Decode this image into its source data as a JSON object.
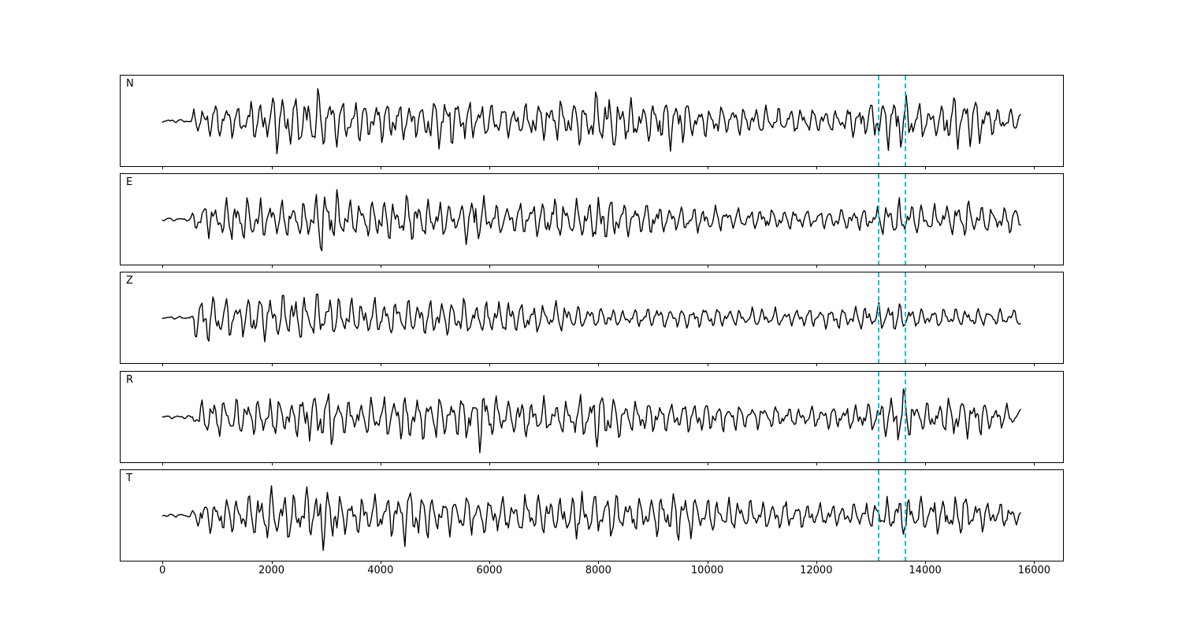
{
  "figure": {
    "background": "#ffffff"
  },
  "chart_data": {
    "type": "line",
    "variant": "seismogram-multipanel",
    "title": "",
    "xlabel": "",
    "ylabel": "",
    "xlim": [
      -770,
      16530
    ],
    "x_ticks": [
      0,
      2000,
      4000,
      6000,
      8000,
      10000,
      12000,
      14000,
      16000
    ],
    "x_tick_labels": [
      "0",
      "2000",
      "4000",
      "6000",
      "8000",
      "10000",
      "12000",
      "14000",
      "16000"
    ],
    "grid": false,
    "legend": "none",
    "trace_color": "#000000",
    "trace_linewidth": 1.4,
    "data_x_start": 0,
    "data_x_end": 15750,
    "pick_lines": {
      "color": "#17becf",
      "style": "dashed",
      "x_values": [
        13150,
        13640
      ]
    },
    "panels": [
      {
        "label": "N",
        "seed": 11,
        "envelope": [
          [
            0,
            0.04
          ],
          [
            450,
            0.05
          ],
          [
            600,
            0.35
          ],
          [
            900,
            0.55
          ],
          [
            1500,
            0.5
          ],
          [
            2000,
            0.75
          ],
          [
            2150,
            1.0
          ],
          [
            2400,
            0.7
          ],
          [
            2700,
            0.8
          ],
          [
            3000,
            0.9
          ],
          [
            3300,
            0.65
          ],
          [
            3800,
            0.6
          ],
          [
            4300,
            0.55
          ],
          [
            4700,
            0.5
          ],
          [
            5100,
            0.75
          ],
          [
            5500,
            0.6
          ],
          [
            6000,
            0.5
          ],
          [
            6500,
            0.45
          ],
          [
            7000,
            0.6
          ],
          [
            7400,
            0.55
          ],
          [
            7800,
            0.75
          ],
          [
            8300,
            0.9
          ],
          [
            8800,
            0.5
          ],
          [
            9400,
            0.8
          ],
          [
            9800,
            0.45
          ],
          [
            10300,
            0.4
          ],
          [
            11000,
            0.42
          ],
          [
            11700,
            0.35
          ],
          [
            12300,
            0.3
          ],
          [
            12800,
            0.45
          ],
          [
            13300,
            0.75
          ],
          [
            13500,
            1.0
          ],
          [
            13800,
            0.55
          ],
          [
            14200,
            0.45
          ],
          [
            14600,
            0.85
          ],
          [
            15000,
            0.7
          ],
          [
            15300,
            0.35
          ],
          [
            15750,
            0.3
          ]
        ]
      },
      {
        "label": "E",
        "seed": 22,
        "envelope": [
          [
            0,
            0.04
          ],
          [
            500,
            0.05
          ],
          [
            650,
            0.45
          ],
          [
            900,
            0.55
          ],
          [
            1300,
            0.6
          ],
          [
            1700,
            0.65
          ],
          [
            2100,
            0.55
          ],
          [
            2500,
            0.5
          ],
          [
            2900,
            1.0
          ],
          [
            3100,
            0.9
          ],
          [
            3400,
            0.5
          ],
          [
            3800,
            0.55
          ],
          [
            4200,
            0.6
          ],
          [
            4600,
            0.65
          ],
          [
            5000,
            0.55
          ],
          [
            5400,
            0.5
          ],
          [
            5700,
            0.8
          ],
          [
            6100,
            0.45
          ],
          [
            6600,
            0.5
          ],
          [
            7000,
            0.6
          ],
          [
            7400,
            0.55
          ],
          [
            7800,
            0.5
          ],
          [
            8100,
            0.75
          ],
          [
            8500,
            0.5
          ],
          [
            9000,
            0.4
          ],
          [
            9500,
            0.35
          ],
          [
            10000,
            0.38
          ],
          [
            10500,
            0.3
          ],
          [
            11000,
            0.32
          ],
          [
            11500,
            0.28
          ],
          [
            12000,
            0.25
          ],
          [
            12500,
            0.3
          ],
          [
            13000,
            0.35
          ],
          [
            13400,
            0.6
          ],
          [
            13700,
            0.5
          ],
          [
            14000,
            0.4
          ],
          [
            14500,
            0.45
          ],
          [
            14800,
            0.55
          ],
          [
            15200,
            0.4
          ],
          [
            15750,
            0.35
          ]
        ]
      },
      {
        "label": "Z",
        "seed": 33,
        "envelope": [
          [
            0,
            0.03
          ],
          [
            550,
            0.05
          ],
          [
            620,
            0.8
          ],
          [
            700,
            1.0
          ],
          [
            800,
            0.85
          ],
          [
            1000,
            0.6
          ],
          [
            1300,
            0.55
          ],
          [
            1600,
            0.6
          ],
          [
            1900,
            0.7
          ],
          [
            2100,
            0.6
          ],
          [
            2400,
            0.75
          ],
          [
            2700,
            0.6
          ],
          [
            3000,
            0.7
          ],
          [
            3300,
            0.55
          ],
          [
            3600,
            0.5
          ],
          [
            4000,
            0.55
          ],
          [
            4400,
            0.5
          ],
          [
            4800,
            0.55
          ],
          [
            5200,
            0.5
          ],
          [
            5600,
            0.55
          ],
          [
            6000,
            0.45
          ],
          [
            6400,
            0.5
          ],
          [
            6800,
            0.4
          ],
          [
            7200,
            0.45
          ],
          [
            7600,
            0.35
          ],
          [
            8000,
            0.3
          ],
          [
            8500,
            0.25
          ],
          [
            9000,
            0.3
          ],
          [
            9500,
            0.28
          ],
          [
            10000,
            0.3
          ],
          [
            10500,
            0.25
          ],
          [
            11000,
            0.28
          ],
          [
            11500,
            0.25
          ],
          [
            12000,
            0.28
          ],
          [
            12500,
            0.3
          ],
          [
            13000,
            0.35
          ],
          [
            13400,
            0.45
          ],
          [
            13800,
            0.3
          ],
          [
            14300,
            0.25
          ],
          [
            14800,
            0.28
          ],
          [
            15300,
            0.25
          ],
          [
            15750,
            0.3
          ]
        ]
      },
      {
        "label": "R",
        "seed": 44,
        "envelope": [
          [
            0,
            0.04
          ],
          [
            500,
            0.05
          ],
          [
            650,
            0.45
          ],
          [
            900,
            0.55
          ],
          [
            1300,
            0.5
          ],
          [
            1700,
            0.6
          ],
          [
            2000,
            0.55
          ],
          [
            2400,
            0.5
          ],
          [
            2900,
            0.95
          ],
          [
            3100,
            0.85
          ],
          [
            3400,
            0.5
          ],
          [
            3800,
            0.55
          ],
          [
            4300,
            0.6
          ],
          [
            4600,
            0.75
          ],
          [
            5000,
            0.55
          ],
          [
            5400,
            0.6
          ],
          [
            5800,
            0.9
          ],
          [
            6200,
            0.5
          ],
          [
            6700,
            0.55
          ],
          [
            7100,
            0.5
          ],
          [
            7500,
            0.45
          ],
          [
            7900,
            0.8
          ],
          [
            8100,
            0.85
          ],
          [
            8500,
            0.5
          ],
          [
            9000,
            0.45
          ],
          [
            9500,
            0.4
          ],
          [
            10000,
            0.45
          ],
          [
            10500,
            0.35
          ],
          [
            11000,
            0.4
          ],
          [
            11500,
            0.3
          ],
          [
            12000,
            0.32
          ],
          [
            12500,
            0.35
          ],
          [
            13000,
            0.4
          ],
          [
            13300,
            0.7
          ],
          [
            13600,
            0.9
          ],
          [
            13900,
            0.45
          ],
          [
            14300,
            0.4
          ],
          [
            14600,
            0.8
          ],
          [
            15000,
            0.5
          ],
          [
            15300,
            0.35
          ],
          [
            15750,
            0.3
          ]
        ]
      },
      {
        "label": "T",
        "seed": 55,
        "envelope": [
          [
            0,
            0.04
          ],
          [
            500,
            0.06
          ],
          [
            700,
            0.4
          ],
          [
            1000,
            0.5
          ],
          [
            1400,
            0.55
          ],
          [
            1800,
            0.6
          ],
          [
            2050,
            0.95
          ],
          [
            2200,
            1.0
          ],
          [
            2500,
            0.6
          ],
          [
            2800,
            0.85
          ],
          [
            3000,
            0.9
          ],
          [
            3300,
            0.6
          ],
          [
            3700,
            0.55
          ],
          [
            4100,
            0.6
          ],
          [
            4500,
            0.85
          ],
          [
            4900,
            0.6
          ],
          [
            5300,
            0.55
          ],
          [
            5700,
            0.6
          ],
          [
            6100,
            0.5
          ],
          [
            6500,
            0.55
          ],
          [
            7000,
            0.6
          ],
          [
            7400,
            0.5
          ],
          [
            7700,
            0.75
          ],
          [
            8000,
            0.6
          ],
          [
            8400,
            0.65
          ],
          [
            8800,
            0.55
          ],
          [
            9200,
            0.6
          ],
          [
            9500,
            0.75
          ],
          [
            9900,
            0.5
          ],
          [
            10400,
            0.45
          ],
          [
            10900,
            0.4
          ],
          [
            11400,
            0.42
          ],
          [
            11900,
            0.35
          ],
          [
            12400,
            0.3
          ],
          [
            12900,
            0.35
          ],
          [
            13300,
            0.5
          ],
          [
            13600,
            0.6
          ],
          [
            14000,
            0.5
          ],
          [
            14400,
            0.55
          ],
          [
            14800,
            0.6
          ],
          [
            15200,
            0.4
          ],
          [
            15750,
            0.3
          ]
        ]
      }
    ]
  }
}
